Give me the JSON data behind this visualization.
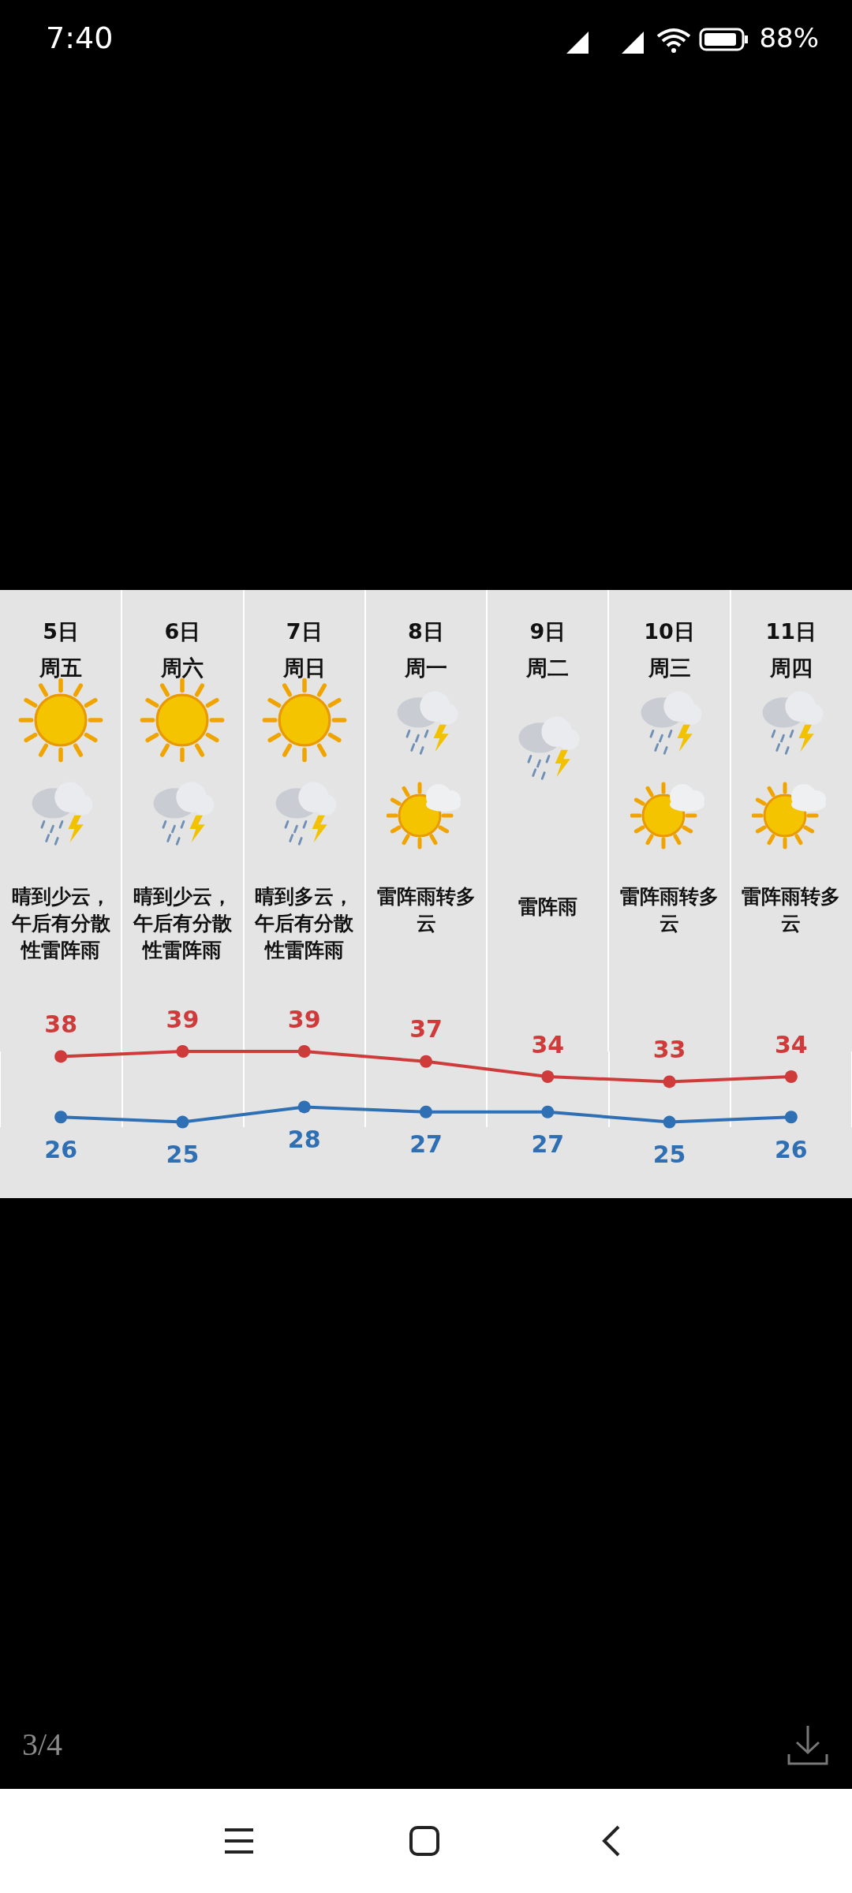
{
  "chart_data": {
    "type": "line",
    "categories": [
      "5日周五",
      "6日周六",
      "7日周日",
      "8日周一",
      "9日周二",
      "10日周三",
      "11日周四"
    ],
    "series": [
      {
        "color": "#cf3b3b",
        "values": [
          38,
          39,
          39,
          37,
          34,
          33,
          34
        ]
      },
      {
        "color": "#2f6fb3",
        "values": [
          26,
          25,
          28,
          27,
          27,
          25,
          26
        ]
      }
    ],
    "data_labels": true,
    "marker": "circle",
    "grid": "x",
    "annotations": [
      "7:40",
      "88%",
      "3/4",
      "晴到少云，午后有分散性雷阵雨",
      "晴到少云，午后有分散性雷阵雨",
      "晴到多云，午后有分散性雷阵雨",
      "雷阵雨转多云",
      "雷阵雨",
      "雷阵雨转多云",
      "雷阵雨转多云"
    ]
  }
}
